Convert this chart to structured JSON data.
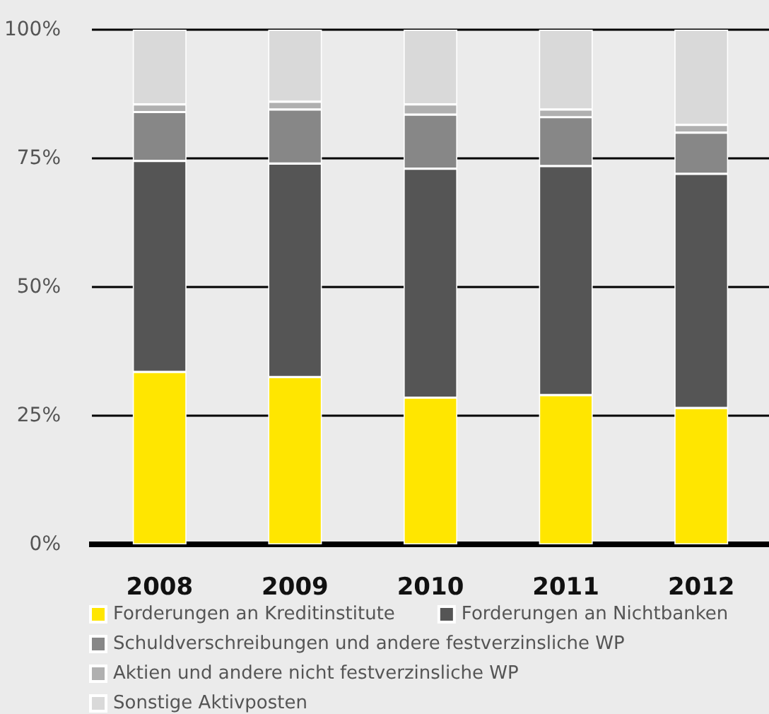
{
  "chart_data": {
    "type": "bar",
    "stacked": true,
    "categories": [
      "2008",
      "2009",
      "2010",
      "2011",
      "2012"
    ],
    "series": [
      {
        "name": "Forderungen an Kreditinstitute",
        "color": "#ffe600",
        "values": [
          33.5,
          32.5,
          28.5,
          29,
          26.5
        ]
      },
      {
        "name": "Forderungen an Nichtbanken",
        "color": "#555555",
        "values": [
          41,
          41.5,
          44.5,
          44.5,
          45.5
        ]
      },
      {
        "name": "Schuldverschreibungen und andere festverzinsliche WP",
        "color": "#878787",
        "values": [
          9.5,
          10.5,
          10.5,
          9.5,
          8
        ]
      },
      {
        "name": "Aktien und andere nicht festverzinsliche WP",
        "color": "#b0b0b0",
        "values": [
          1.5,
          1.5,
          2,
          1.5,
          1.5
        ]
      },
      {
        "name": "Sonstige Aktivposten",
        "color": "#d9d9d9",
        "values": [
          14.5,
          14,
          14.5,
          15.5,
          18.5
        ]
      }
    ],
    "ylim": [
      0,
      100
    ],
    "yticks": [
      {
        "value": 0,
        "label": "0%"
      },
      {
        "value": 25,
        "label": "25%"
      },
      {
        "value": 50,
        "label": "50%"
      },
      {
        "value": 75,
        "label": "75%"
      },
      {
        "value": 100,
        "label": "100%"
      }
    ],
    "grid": "y",
    "legend": "bottom"
  }
}
